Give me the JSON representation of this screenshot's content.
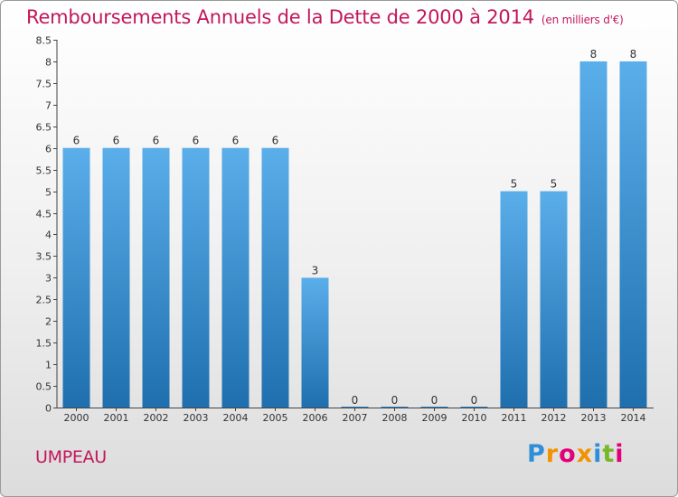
{
  "title": "Remboursements Annuels de la Dette de 2000 à 2014",
  "subtitle": "(en milliers d'€)",
  "commune": "UMPEAU",
  "logo": {
    "text": "Proxiti",
    "letters": [
      {
        "ch": "P",
        "color": "#2f8fd6"
      },
      {
        "ch": "r",
        "color": "#f39200"
      },
      {
        "ch": "o",
        "color": "#e2007a"
      },
      {
        "ch": "x",
        "color": "#f39200"
      },
      {
        "ch": "i",
        "color": "#2f8fd6"
      },
      {
        "ch": "t",
        "color": "#76b82a"
      },
      {
        "ch": "i",
        "color": "#e2007a"
      }
    ]
  },
  "colors": {
    "title": "#c2185b",
    "bar_light": "#5aaeea",
    "bar_dark": "#1f6fae",
    "axis": "#444444"
  },
  "chart_data": {
    "type": "bar",
    "categories": [
      "2000",
      "2001",
      "2002",
      "2003",
      "2004",
      "2005",
      "2006",
      "2007",
      "2008",
      "2009",
      "2010",
      "2011",
      "2012",
      "2013",
      "2014"
    ],
    "values": [
      6,
      6,
      6,
      6,
      6,
      6,
      3,
      0,
      0,
      0,
      0,
      5,
      5,
      8,
      8
    ],
    "data_labels": [
      "6",
      "6",
      "6",
      "6",
      "6",
      "6",
      "3",
      "0",
      "0",
      "0",
      "0",
      "5",
      "5",
      "8",
      "8"
    ],
    "y_ticks": [
      "0",
      "0.5",
      "1",
      "1.5",
      "2",
      "2.5",
      "3",
      "3.5",
      "4",
      "4.5",
      "5",
      "5.5",
      "6",
      "6.5",
      "7",
      "7.5",
      "8",
      "8.5"
    ],
    "ylim": [
      0,
      8.5
    ],
    "grid": false,
    "legend": "none"
  }
}
